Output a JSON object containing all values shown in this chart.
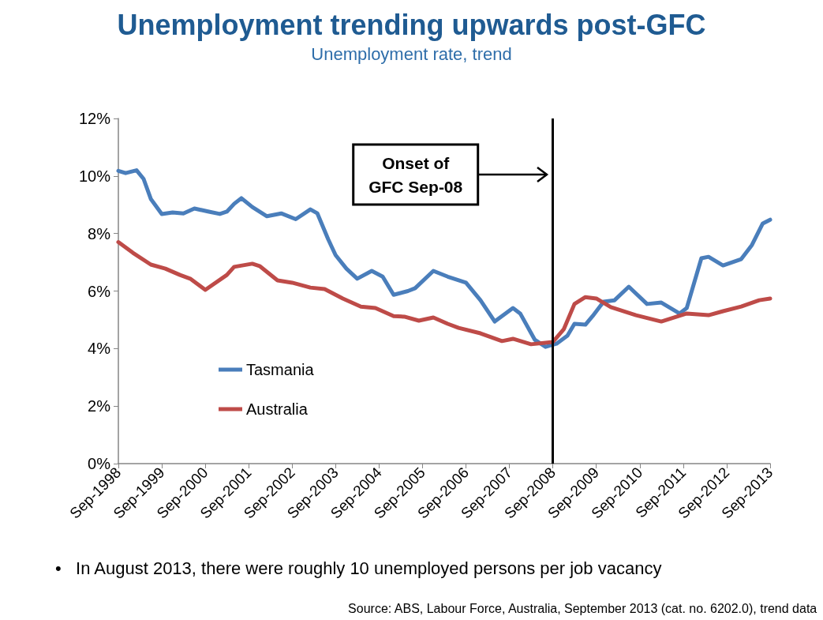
{
  "chart_data": {
    "type": "line",
    "title": "Unemployment trending upwards post-GFC",
    "subtitle": "Unemployment rate, trend",
    "xlim": [
      "1998-09",
      "2013-09"
    ],
    "xticks": [
      {
        "value": "1998-09",
        "label": "Sep-1998"
      },
      {
        "value": "1999-09",
        "label": "Sep-1999"
      },
      {
        "value": "2000-09",
        "label": "Sep-2000"
      },
      {
        "value": "2001-09",
        "label": "Sep-2001"
      },
      {
        "value": "2002-09",
        "label": "Sep-2002"
      },
      {
        "value": "2003-09",
        "label": "Sep-2003"
      },
      {
        "value": "2004-09",
        "label": "Sep-2004"
      },
      {
        "value": "2005-09",
        "label": "Sep-2005"
      },
      {
        "value": "2006-09",
        "label": "Sep-2006"
      },
      {
        "value": "2007-09",
        "label": "Sep-2007"
      },
      {
        "value": "2008-09",
        "label": "Sep-2008"
      },
      {
        "value": "2009-09",
        "label": "Sep-2009"
      },
      {
        "value": "2010-09",
        "label": "Sep-2010"
      },
      {
        "value": "2011-09",
        "label": "Sep-2011"
      },
      {
        "value": "2012-09",
        "label": "Sep-2012"
      },
      {
        "value": "2013-09",
        "label": "Sep-2013"
      }
    ],
    "ylim": [
      0,
      12
    ],
    "yticks": [
      {
        "value": 0,
        "label": "0%"
      },
      {
        "value": 2,
        "label": "2%"
      },
      {
        "value": 4,
        "label": "4%"
      },
      {
        "value": 6,
        "label": "6%"
      },
      {
        "value": 8,
        "label": "8%"
      },
      {
        "value": 10,
        "label": "10%"
      },
      {
        "value": 12,
        "label": "12%"
      }
    ],
    "series": [
      {
        "name": "Tasmania",
        "color": "#4a7ebb",
        "x": [
          "1998-09",
          "1998-11",
          "1999-02",
          "1999-04",
          "1999-06",
          "1999-09",
          "1999-12",
          "2000-03",
          "2000-06",
          "2000-10",
          "2001-01",
          "2001-03",
          "2001-05",
          "2001-07",
          "2001-10",
          "2002-02",
          "2002-06",
          "2002-10",
          "2003-02",
          "2003-04",
          "2003-07",
          "2003-09",
          "2003-12",
          "2004-03",
          "2004-07",
          "2004-10",
          "2005-01",
          "2005-05",
          "2005-07",
          "2005-12",
          "2006-04",
          "2006-09",
          "2007-01",
          "2007-05",
          "2007-10",
          "2007-12",
          "2008-04",
          "2008-07",
          "2008-10",
          "2009-01",
          "2009-03",
          "2009-06",
          "2009-08",
          "2009-11",
          "2010-02",
          "2010-06",
          "2010-11",
          "2011-03",
          "2011-08",
          "2011-10",
          "2012-02",
          "2012-04",
          "2012-08",
          "2013-01",
          "2013-04",
          "2013-07",
          "2013-09"
        ],
        "values": [
          10.18,
          10.1,
          10.2,
          9.9,
          9.2,
          8.68,
          8.73,
          8.7,
          8.87,
          8.76,
          8.68,
          8.76,
          9.03,
          9.23,
          8.92,
          8.6,
          8.7,
          8.5,
          8.84,
          8.7,
          7.8,
          7.25,
          6.78,
          6.43,
          6.7,
          6.5,
          5.87,
          6.0,
          6.1,
          6.7,
          6.5,
          6.29,
          5.68,
          4.94,
          5.41,
          5.22,
          4.31,
          4.06,
          4.17,
          4.45,
          4.86,
          4.83,
          5.13,
          5.63,
          5.68,
          6.15,
          5.55,
          5.6,
          5.22,
          5.41,
          7.14,
          7.19,
          6.89,
          7.11,
          7.6,
          8.35,
          8.48
        ]
      },
      {
        "name": "Australia",
        "color": "#be4b48",
        "x": [
          "1998-09",
          "1999-01",
          "1999-06",
          "1999-10",
          "2000-02",
          "2000-05",
          "2000-09",
          "2001-03",
          "2001-05",
          "2001-10",
          "2001-12",
          "2002-05",
          "2002-09",
          "2003-02",
          "2003-06",
          "2003-11",
          "2004-04",
          "2004-08",
          "2005-01",
          "2005-04",
          "2005-08",
          "2005-12",
          "2006-04",
          "2006-07",
          "2007-01",
          "2007-07",
          "2007-10",
          "2008-03",
          "2008-09",
          "2008-12",
          "2009-03",
          "2009-06",
          "2009-09",
          "2010-01",
          "2010-08",
          "2011-03",
          "2011-10",
          "2012-04",
          "2012-08",
          "2013-01",
          "2013-06",
          "2013-09"
        ],
        "values": [
          7.7,
          7.33,
          6.92,
          6.78,
          6.56,
          6.42,
          6.04,
          6.56,
          6.84,
          6.95,
          6.87,
          6.37,
          6.29,
          6.12,
          6.07,
          5.74,
          5.46,
          5.41,
          5.13,
          5.11,
          4.97,
          5.08,
          4.86,
          4.72,
          4.53,
          4.26,
          4.34,
          4.15,
          4.23,
          4.67,
          5.55,
          5.79,
          5.74,
          5.44,
          5.16,
          4.94,
          5.22,
          5.16,
          5.3,
          5.46,
          5.68,
          5.74
        ]
      }
    ],
    "ref_lines": [
      {
        "axis": "x",
        "value": "2008-09",
        "label": "Onset of\nGFC Sep-08",
        "color": "#000000"
      }
    ],
    "annotations": [
      "•   In August 2013, there were roughly 10 unemployed persons per job vacancy",
      "Source: ABS, Labour Force, Australia, September 2013 (cat. no. 6202.0), trend data"
    ],
    "legend": "bottom left",
    "grid": false,
    "marker": "none",
    "line_style": "solid"
  }
}
